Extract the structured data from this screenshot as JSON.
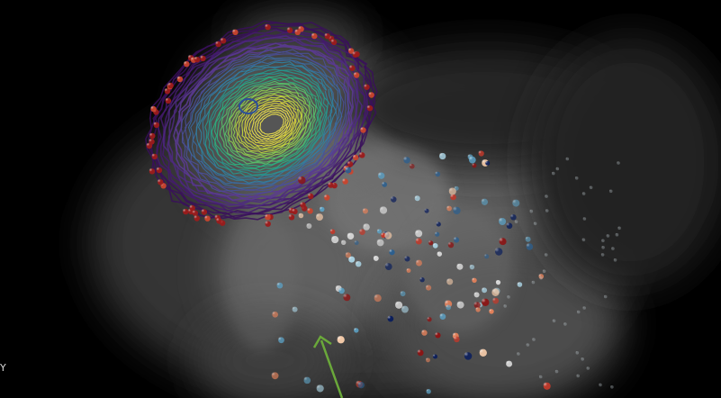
{
  "scene": {
    "axis_label": "Y",
    "colors": {
      "background": "#000000",
      "volume": "#9a9a9a",
      "arrow": "#6aa83a",
      "contour_outer": "#5a2a86",
      "contour_mid": "#1f9e89",
      "contour_inner": "#e8e83a",
      "point_palette": [
        "#8c1515",
        "#c0392b",
        "#e0805a",
        "#f2c9a8",
        "#d9d9d9",
        "#a8d0e0",
        "#5b9ec0",
        "#2c5f8f",
        "#0c1f5c"
      ]
    },
    "icons": [
      "arrow-annotation",
      "contour-surface",
      "point-cloud",
      "volume-render"
    ]
  }
}
